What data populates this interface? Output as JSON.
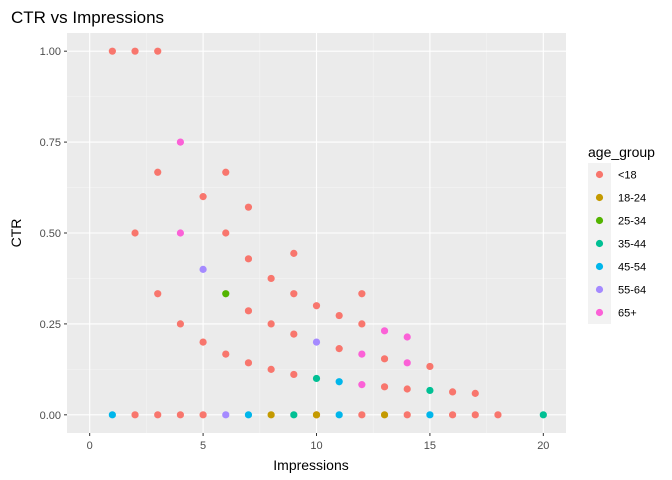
{
  "chart_data": {
    "type": "scatter",
    "title": "CTR vs Impressions",
    "xlabel": "Impressions",
    "ylabel": "CTR",
    "xlim": [
      -1,
      21
    ],
    "ylim": [
      -0.05,
      1.05
    ],
    "xticks": [
      0,
      5,
      10,
      15,
      20
    ],
    "xtick_labels": [
      "0",
      "5",
      "10",
      "15",
      "20"
    ],
    "yticks": [
      0,
      0.25,
      0.5,
      0.75,
      1.0
    ],
    "ytick_labels": [
      "0.00",
      "0.25",
      "0.50",
      "0.75",
      "1.00"
    ],
    "grid": true,
    "legend": {
      "title": "age_group",
      "position": "right"
    },
    "series": [
      {
        "name": "<18",
        "color": "#F8766D",
        "points": [
          [
            1,
            1.0
          ],
          [
            2,
            1.0
          ],
          [
            3,
            1.0
          ],
          [
            3,
            0.667
          ],
          [
            2,
            0.5
          ],
          [
            3,
            0.333
          ],
          [
            2,
            0
          ],
          [
            3,
            0
          ],
          [
            4,
            0
          ],
          [
            5,
            0
          ],
          [
            4,
            0.25
          ],
          [
            5,
            0.6
          ],
          [
            5,
            0.2
          ],
          [
            6,
            0.667
          ],
          [
            6,
            0.5
          ],
          [
            6,
            0.167
          ],
          [
            7,
            0.571
          ],
          [
            7,
            0.429
          ],
          [
            7,
            0.286
          ],
          [
            7,
            0.143
          ],
          [
            8,
            0.375
          ],
          [
            8,
            0.25
          ],
          [
            8,
            0.125
          ],
          [
            9,
            0.444
          ],
          [
            9,
            0.333
          ],
          [
            9,
            0.222
          ],
          [
            9,
            0.111
          ],
          [
            10,
            0.3
          ],
          [
            11,
            0.273
          ],
          [
            11,
            0.182
          ],
          [
            12,
            0.333
          ],
          [
            12,
            0.25
          ],
          [
            13,
            0.154
          ],
          [
            13,
            0.077
          ],
          [
            14,
            0.071
          ],
          [
            15,
            0.133
          ],
          [
            16,
            0.063
          ],
          [
            17,
            0.059
          ],
          [
            10,
            0
          ],
          [
            12,
            0
          ],
          [
            14,
            0
          ],
          [
            16,
            0
          ],
          [
            17,
            0
          ],
          [
            18,
            0
          ]
        ]
      },
      {
        "name": "18-24",
        "color": "#C49A00",
        "points": [
          [
            8,
            0
          ],
          [
            10,
            0
          ],
          [
            13,
            0
          ]
        ]
      },
      {
        "name": "25-34",
        "color": "#53B400",
        "points": [
          [
            6,
            0.333
          ]
        ]
      },
      {
        "name": "35-44",
        "color": "#00C094",
        "points": [
          [
            9,
            0
          ],
          [
            10,
            0.1
          ],
          [
            15,
            0.067
          ],
          [
            20,
            0
          ]
        ]
      },
      {
        "name": "45-54",
        "color": "#00B6EB",
        "points": [
          [
            1,
            0
          ],
          [
            7,
            0
          ],
          [
            11,
            0.091
          ],
          [
            11,
            0
          ],
          [
            15,
            0
          ]
        ]
      },
      {
        "name": "55-64",
        "color": "#A58AFF",
        "points": [
          [
            5,
            0.4
          ],
          [
            6,
            0
          ],
          [
            10,
            0.2
          ]
        ]
      },
      {
        "name": "65+",
        "color": "#FB61D7",
        "points": [
          [
            4,
            0.75
          ],
          [
            4,
            0.5
          ],
          [
            12,
            0.167
          ],
          [
            12,
            0.083
          ],
          [
            13,
            0.231
          ],
          [
            14,
            0.214
          ],
          [
            14,
            0.143
          ]
        ]
      }
    ]
  }
}
